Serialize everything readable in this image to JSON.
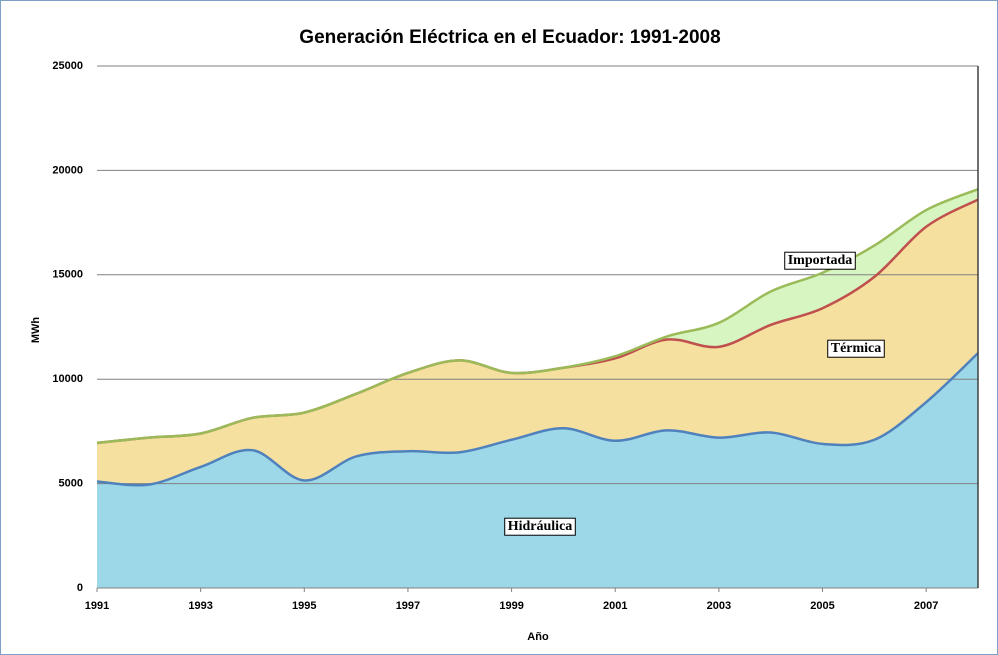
{
  "chart_data": {
    "type": "stacked_area",
    "title": "Generación Eléctrica  en el Ecuador: 1991-2008",
    "x_label": "Año",
    "y_label": "MWh",
    "x": [
      1991,
      1992,
      1993,
      1994,
      1995,
      1996,
      1997,
      1998,
      1999,
      2000,
      2001,
      2002,
      2003,
      2004,
      2005,
      2006,
      2007,
      2008
    ],
    "series": [
      {
        "name": "Hidráulica",
        "color": "#9dd8e8",
        "line_color": "#4f81bd",
        "values": [
          5100,
          4950,
          5800,
          6600,
          5150,
          6300,
          6550,
          6500,
          7100,
          7650,
          7050,
          7550,
          7200,
          7450,
          6900,
          7100,
          8900,
          11250
        ]
      },
      {
        "name": "Térmica",
        "color": "#f5e0a0",
        "line_color": "#c0504d",
        "values": [
          1850,
          2250,
          1600,
          1550,
          3250,
          3000,
          3750,
          4400,
          3200,
          2900,
          3950,
          4350,
          4350,
          5150,
          6500,
          7800,
          8400,
          7350
        ]
      },
      {
        "name": "Importada",
        "color": "#d6f5c0",
        "line_color": "#9bbb59",
        "values": [
          0,
          0,
          0,
          0,
          0,
          0,
          0,
          0,
          0,
          0,
          100,
          150,
          1150,
          1600,
          1700,
          1500,
          800,
          500
        ]
      }
    ],
    "xlim": [
      1991,
      2008
    ],
    "xticks": [
      1991,
      1993,
      1995,
      1997,
      1999,
      2001,
      2003,
      2005,
      2007
    ],
    "ylim": [
      0,
      25000
    ],
    "yticks": [
      0,
      5000,
      10000,
      15000,
      20000,
      25000
    ],
    "grid": true
  }
}
